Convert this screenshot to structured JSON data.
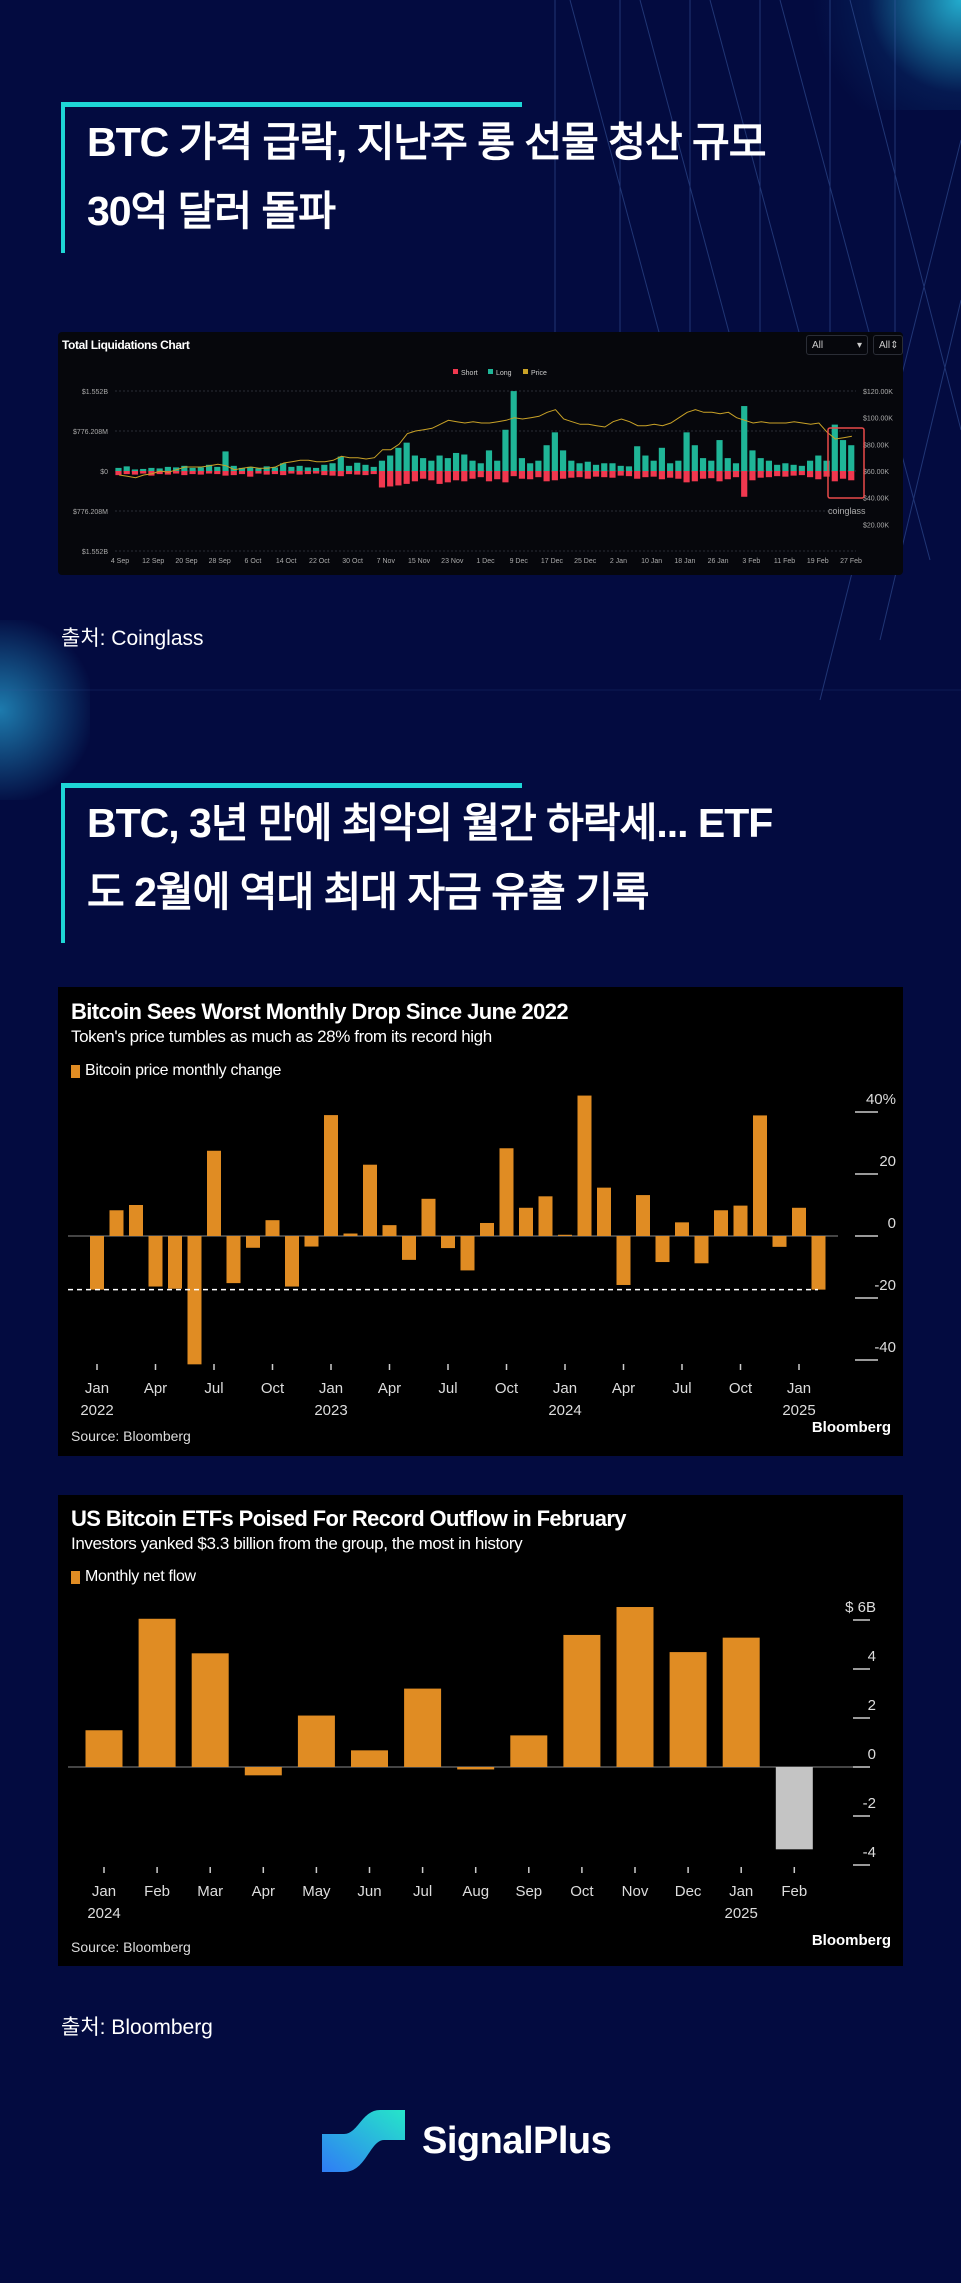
{
  "section1": {
    "headline_lines": [
      "BTC 가격 급락, 지난주 롱 선물 청산 규모",
      "30억 달러 돌파"
    ],
    "source": "출처: Coinglass"
  },
  "section2": {
    "headline_lines": [
      "BTC, 3년 만에 최악의 월간 하락세... ETF",
      "도 2월에 역대 최대 자금 유출 기록"
    ],
    "source": "출처: Bloomberg"
  },
  "brand": "SignalPlus",
  "colors": {
    "accent": "#1ed6d6",
    "background": "#030b40",
    "bar": "#e08c23",
    "short": "#f0384f",
    "long": "#1fb597",
    "price": "#c9a227"
  },
  "chart_data": [
    {
      "type": "bar",
      "title": "Total Liquidations Chart",
      "dropdowns": [
        "All",
        "All"
      ],
      "legend": [
        "Short",
        "Long",
        "Price"
      ],
      "watermark": "coinglass",
      "left_ticks": [
        "$1.552B",
        "$776.208M",
        "$0",
        "$776.208M",
        "$1.552B"
      ],
      "right_ticks": [
        "$120.00K",
        "$100.00K",
        "$80.00K",
        "$60.00K",
        "$40.00K",
        "$20.00K"
      ],
      "x_ticks": [
        "4 Sep",
        "12 Sep",
        "20 Sep",
        "28 Sep",
        "6 Oct",
        "14 Oct",
        "22 Oct",
        "30 Oct",
        "7 Nov",
        "15 Nov",
        "23 Nov",
        "1 Dec",
        "9 Dec",
        "17 Dec",
        "25 Dec",
        "2 Jan",
        "10 Jan",
        "18 Jan",
        "26 Jan",
        "3 Feb",
        "11 Feb",
        "19 Feb",
        "27 Feb"
      ],
      "ylim_millions": [
        -1552,
        1552
      ],
      "price_ylim_k": [
        0,
        120
      ],
      "long_millions": [
        60,
        90,
        30,
        40,
        60,
        50,
        80,
        70,
        100,
        60,
        70,
        120,
        80,
        380,
        100,
        60,
        80,
        50,
        90,
        70,
        150,
        80,
        100,
        70,
        60,
        120,
        150,
        280,
        100,
        160,
        120,
        80,
        200,
        300,
        450,
        550,
        300,
        250,
        200,
        300,
        250,
        350,
        320,
        200,
        150,
        400,
        200,
        800,
        1550,
        250,
        150,
        200,
        500,
        750,
        400,
        200,
        150,
        180,
        120,
        150,
        150,
        100,
        90,
        480,
        300,
        200,
        450,
        150,
        200,
        750,
        500,
        250,
        200,
        600,
        250,
        150,
        1260,
        400,
        250,
        200,
        120,
        150,
        120,
        100,
        200,
        300,
        200,
        900,
        600,
        500
      ],
      "short_millions": [
        80,
        60,
        70,
        50,
        90,
        60,
        70,
        50,
        80,
        60,
        70,
        50,
        60,
        90,
        80,
        60,
        110,
        50,
        70,
        60,
        80,
        50,
        70,
        60,
        50,
        80,
        90,
        100,
        60,
        70,
        80,
        60,
        320,
        300,
        280,
        250,
        200,
        150,
        180,
        250,
        220,
        180,
        200,
        150,
        120,
        200,
        160,
        220,
        100,
        150,
        160,
        120,
        200,
        180,
        150,
        130,
        120,
        150,
        110,
        120,
        130,
        90,
        100,
        150,
        120,
        110,
        160,
        130,
        150,
        220,
        200,
        150,
        140,
        200,
        160,
        120,
        500,
        180,
        130,
        120,
        100,
        110,
        90,
        80,
        120,
        160,
        110,
        200,
        150,
        180
      ],
      "price_k": [
        57,
        56,
        55,
        57,
        58,
        60,
        59,
        61,
        63,
        63,
        63,
        64,
        65,
        64,
        61,
        62,
        63,
        62,
        62,
        63,
        66,
        67,
        68,
        68,
        67,
        67,
        68,
        71,
        70,
        70,
        69,
        70,
        76,
        76,
        80,
        88,
        90,
        91,
        92,
        95,
        98,
        97,
        96,
        97,
        96,
        96,
        97,
        98,
        100,
        99,
        100,
        101,
        104,
        106,
        99,
        97,
        95,
        95,
        94,
        93,
        97,
        99,
        97,
        94,
        94,
        95,
        94,
        96,
        100,
        104,
        106,
        104,
        104,
        103,
        104,
        100,
        98,
        96,
        97,
        96,
        96,
        96,
        97,
        96,
        95,
        96,
        89,
        84,
        85,
        86
      ]
    },
    {
      "type": "bar",
      "title": "Bitcoin Sees Worst Monthly Drop Since June 2022",
      "subtitle": "Token's price tumbles as much as 28% from its record high",
      "legend": [
        "Bitcoin price monthly change"
      ],
      "source": "Source: Bloomberg",
      "brand": "Bloomberg",
      "ylabel": "%",
      "ylim": [
        -44,
        48
      ],
      "y_ticks": [
        "40%",
        "20",
        "0",
        "-20",
        "-40"
      ],
      "x_tick_labels": [
        {
          "month": "Jan",
          "year": "2022"
        },
        {
          "month": "Apr"
        },
        {
          "month": "Jul"
        },
        {
          "month": "Oct"
        },
        {
          "month": "Jan",
          "year": "2023"
        },
        {
          "month": "Apr"
        },
        {
          "month": "Jul"
        },
        {
          "month": "Oct"
        },
        {
          "month": "Jan",
          "year": "2024"
        },
        {
          "month": "Apr"
        },
        {
          "month": "Jul"
        },
        {
          "month": "Oct"
        },
        {
          "month": "Jan",
          "year": "2025"
        }
      ],
      "reference_line": -17.3,
      "values": [
        -17.3,
        8.3,
        10,
        -16.3,
        -17,
        -41.4,
        27.5,
        -15.2,
        -3.8,
        5.1,
        -16.3,
        -3.4,
        39,
        0.8,
        23,
        3.5,
        -7.7,
        12,
        -3.9,
        -11.1,
        4.2,
        28.3,
        9.1,
        12.8,
        0.4,
        45.3,
        15.6,
        -15.8,
        13.2,
        -8.4,
        4.4,
        -8.8,
        8.3,
        9.8,
        38.9,
        -3.5,
        9.1,
        -17.3
      ]
    },
    {
      "type": "bar",
      "title": "US Bitcoin ETFs Poised For Record Outflow in February",
      "subtitle": "Investors yanked $3.3 billion from the group, the most in history",
      "legend": [
        "Monthly net flow"
      ],
      "source": "Source: Bloomberg",
      "brand": "Bloomberg",
      "ylabel": "$B",
      "ylim": [
        -4.5,
        6.8
      ],
      "y_ticks": [
        "$ 6B",
        "4",
        "2",
        "0",
        "-2",
        "-4"
      ],
      "categories": [
        {
          "month": "Jan",
          "year": "2024"
        },
        {
          "month": "Feb"
        },
        {
          "month": "Mar"
        },
        {
          "month": "Apr"
        },
        {
          "month": "May"
        },
        {
          "month": "Jun"
        },
        {
          "month": "Jul"
        },
        {
          "month": "Aug"
        },
        {
          "month": "Sep"
        },
        {
          "month": "Oct"
        },
        {
          "month": "Nov"
        },
        {
          "month": "Dec"
        },
        {
          "month": "Jan",
          "year": "2025"
        },
        {
          "month": "Feb"
        }
      ],
      "values": [
        1.5,
        6.05,
        4.64,
        -0.34,
        2.1,
        0.68,
        3.2,
        -0.1,
        1.29,
        5.39,
        6.53,
        4.69,
        5.28,
        -3.36
      ],
      "highlight_color": "#c4c4c4"
    }
  ]
}
